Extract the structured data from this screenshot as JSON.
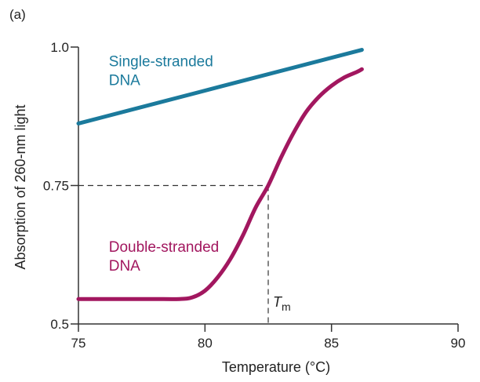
{
  "panel_label": "(a)",
  "chart_data": {
    "type": "line",
    "xlabel": "Temperature (°C)",
    "ylabel": "Absorption of 260-nm light",
    "xlim": [
      75,
      90
    ],
    "ylim": [
      0.5,
      1.0
    ],
    "x_ticks": [
      75,
      80,
      85,
      90
    ],
    "y_ticks": [
      0.5,
      0.75,
      1.0
    ],
    "y_tick_labels": [
      "0.5",
      "0.75",
      "1.0"
    ],
    "grid": false,
    "series": [
      {
        "name": "Single-stranded DNA",
        "label_lines": [
          "Single-stranded",
          "DNA"
        ],
        "color": "#1b7a9c",
        "x": [
          75,
          86.2
        ],
        "y": [
          0.862,
          0.995
        ]
      },
      {
        "name": "Double-stranded DNA",
        "label_lines": [
          "Double-stranded",
          "DNA"
        ],
        "color": "#a2175f",
        "x": [
          75,
          76,
          77,
          78,
          79,
          79.5,
          80,
          80.5,
          81,
          81.5,
          82,
          82.5,
          83,
          83.5,
          84,
          84.5,
          85,
          85.5,
          86,
          86.2
        ],
        "y": [
          0.545,
          0.545,
          0.545,
          0.545,
          0.545,
          0.548,
          0.56,
          0.584,
          0.617,
          0.66,
          0.71,
          0.75,
          0.8,
          0.845,
          0.883,
          0.91,
          0.93,
          0.945,
          0.955,
          0.96
        ]
      }
    ],
    "annotations": {
      "tm_label": "T",
      "tm_subscript": "m",
      "tm_x": 82.5,
      "tm_y": 0.75
    }
  }
}
